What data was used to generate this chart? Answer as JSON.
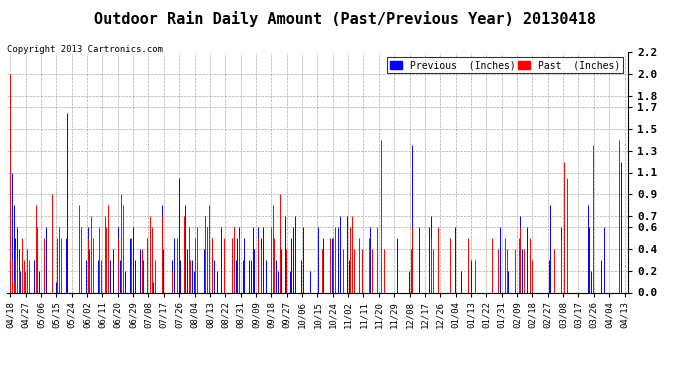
{
  "title": "Outdoor Rain Daily Amount (Past/Previous Year) 20130418",
  "copyright": "Copyright 2013 Cartronics.com",
  "legend": [
    {
      "label": "Previous  (Inches)",
      "color": "#0000ff"
    },
    {
      "label": "Past  (Inches)",
      "color": "#ff0000"
    }
  ],
  "yticks": [
    0.0,
    0.2,
    0.4,
    0.6,
    0.7,
    0.9,
    1.1,
    1.3,
    1.5,
    1.7,
    1.8,
    2.0,
    2.2
  ],
  "ymax": 2.2,
  "ymin": 0.0,
  "background_color": "#ffffff",
  "grid_color": "#aaaaaa",
  "title_fontsize": 11,
  "tick_label_fontsize": 6.5,
  "n_points": 366,
  "x_tick_labels": [
    "04/18",
    "04/27",
    "05/06",
    "05/15",
    "05/24",
    "06/02",
    "06/11",
    "06/20",
    "06/29",
    "07/08",
    "07/17",
    "07/26",
    "08/04",
    "08/13",
    "08/22",
    "08/31",
    "09/09",
    "09/18",
    "09/27",
    "10/06",
    "10/15",
    "10/24",
    "11/02",
    "11/11",
    "11/20",
    "11/29",
    "12/08",
    "12/17",
    "12/26",
    "01/04",
    "01/13",
    "01/22",
    "01/31",
    "02/09",
    "02/18",
    "02/27",
    "03/08",
    "03/17",
    "03/26",
    "04/04",
    "04/13"
  ],
  "blue_data": [
    0.3,
    1.1,
    0.8,
    0.5,
    0.6,
    0.4,
    0.2,
    0.0,
    0.0,
    0.1,
    0.0,
    0.0,
    0.0,
    0.0,
    0.3,
    0.0,
    0.4,
    0.2,
    0.0,
    0.0,
    0.3,
    0.6,
    0.0,
    0.0,
    0.0,
    0.0,
    0.0,
    0.1,
    0.4,
    0.5,
    0.0,
    0.0,
    0.0,
    0.5,
    1.65,
    0.0,
    0.0,
    0.0,
    0.0,
    0.0,
    0.0,
    0.6,
    0.3,
    0.0,
    0.0,
    0.3,
    0.6,
    0.4,
    0.0,
    0.0,
    0.0,
    0.0,
    0.3,
    0.0,
    0.0,
    0.0,
    0.0,
    0.0,
    0.0,
    0.3,
    0.0,
    0.4,
    0.0,
    0.0,
    0.6,
    0.3,
    0.4,
    0.0,
    0.2,
    0.0,
    0.0,
    0.5,
    0.2,
    0.6,
    0.3,
    0.0,
    0.0,
    0.4,
    0.2,
    0.3,
    0.0,
    0.5,
    0.0,
    0.0,
    0.0,
    0.1,
    0.0,
    0.0,
    0.0,
    0.0,
    0.8,
    0.4,
    0.0,
    0.0,
    0.0,
    0.0,
    0.3,
    0.5,
    0.0,
    0.0,
    1.05,
    0.3,
    0.0,
    0.6,
    0.8,
    0.4,
    0.6,
    0.0,
    0.3,
    0.2,
    0.4,
    0.2,
    0.0,
    0.0,
    0.0,
    0.4,
    0.7,
    0.6,
    0.0,
    0.0,
    0.5,
    0.3,
    0.0,
    0.2,
    0.0,
    0.6,
    0.0,
    0.0,
    0.0,
    0.0,
    0.0,
    0.0,
    0.4,
    0.6,
    0.3,
    0.5,
    0.6,
    0.0,
    0.3,
    0.5,
    0.0,
    0.0,
    0.3,
    0.3,
    0.6,
    0.4,
    0.0,
    0.6,
    0.0,
    0.5,
    0.6,
    0.0,
    0.3,
    0.0,
    0.0,
    0.0,
    0.0,
    0.0,
    0.3,
    0.2,
    0.6,
    0.4,
    0.0,
    0.7,
    0.3,
    0.0,
    0.2,
    0.5,
    0.6,
    0.7,
    0.0,
    0.0,
    0.0,
    0.3,
    0.6,
    0.0,
    0.0,
    0.0,
    0.2,
    0.0,
    0.0,
    0.0,
    0.0,
    0.6,
    0.0,
    0.0,
    0.5,
    0.0,
    0.0,
    0.0,
    0.0,
    0.5,
    0.0,
    0.0,
    0.0,
    0.6,
    0.7,
    0.0,
    0.0,
    0.0,
    0.7,
    0.3,
    0.0,
    0.0,
    0.0,
    0.0,
    0.0,
    0.0,
    0.0,
    0.0,
    0.0,
    0.0,
    0.0,
    0.0,
    0.6,
    0.0,
    0.0,
    0.0,
    0.0,
    0.0,
    0.0,
    0.0,
    0.0,
    0.0,
    0.0,
    0.0,
    0.0,
    0.0,
    0.0,
    0.0,
    0.5,
    0.0,
    0.0,
    0.0,
    0.0,
    0.0,
    0.0,
    0.2,
    0.4,
    1.35,
    0.0,
    0.0,
    0.0,
    0.6,
    0.0,
    0.0,
    0.0,
    0.0,
    0.0,
    0.6,
    0.7,
    0.0,
    0.0,
    0.0,
    0.0,
    0.0,
    0.0,
    0.0,
    0.0,
    0.0,
    0.0,
    0.0,
    0.0,
    0.0,
    0.6,
    0.0,
    0.0,
    0.0,
    0.2,
    0.0,
    0.0,
    0.0,
    0.0,
    0.0,
    0.3,
    0.0,
    0.0,
    0.0,
    0.0,
    0.0,
    0.0,
    0.0,
    0.0,
    0.0,
    0.0,
    0.0,
    0.0,
    0.0,
    0.0,
    0.0,
    0.0,
    0.6,
    0.0,
    0.0,
    0.0,
    0.0,
    0.2,
    0.0,
    0.0,
    0.0,
    0.1,
    0.0,
    0.0,
    0.7,
    0.4,
    0.0,
    0.0,
    0.6,
    0.0,
    0.0,
    0.0,
    0.0,
    0.0,
    0.0,
    0.0,
    0.0,
    0.0,
    0.0,
    0.0,
    0.0,
    0.3,
    0.8,
    0.0,
    0.0,
    0.0,
    0.0,
    0.0,
    0.6,
    0.0,
    0.0,
    0.0,
    0.3,
    0.0,
    0.0,
    0.0,
    0.0,
    0.0,
    0.0,
    0.0,
    0.0,
    0.0,
    0.0,
    0.0,
    0.8,
    0.6,
    0.2,
    0.0,
    0.0,
    0.0,
    0.0,
    0.0,
    0.3,
    0.0,
    0.6,
    0.0,
    0.0,
    0.0,
    0.0,
    0.0,
    0.0,
    0.0,
    0.0,
    0.6,
    1.2,
    0.0,
    0.0
  ],
  "red_data": [
    2.0,
    0.3,
    0.1,
    0.4,
    0.3,
    0.2,
    0.0,
    0.5,
    0.3,
    0.2,
    0.4,
    0.3,
    0.0,
    0.0,
    0.0,
    0.8,
    0.6,
    0.0,
    0.0,
    0.0,
    0.5,
    0.0,
    0.0,
    0.0,
    0.0,
    0.9,
    0.0,
    0.0,
    0.5,
    0.6,
    0.5,
    0.0,
    0.0,
    0.0,
    0.0,
    0.0,
    0.0,
    0.0,
    0.0,
    0.0,
    0.0,
    0.8,
    0.6,
    0.0,
    0.0,
    0.0,
    0.5,
    0.3,
    0.7,
    0.5,
    0.0,
    0.0,
    0.0,
    0.6,
    0.3,
    0.0,
    0.7,
    0.6,
    0.8,
    0.0,
    0.0,
    0.0,
    0.0,
    0.0,
    0.5,
    0.0,
    0.9,
    0.8,
    0.0,
    0.0,
    0.0,
    0.0,
    0.5,
    0.0,
    0.0,
    0.0,
    0.0,
    0.0,
    0.4,
    0.0,
    0.0,
    0.5,
    0.0,
    0.7,
    0.6,
    0.0,
    0.3,
    0.0,
    0.0,
    0.0,
    0.7,
    0.0,
    0.0,
    0.0,
    0.0,
    0.0,
    0.2,
    0.0,
    0.0,
    0.5,
    0.0,
    0.0,
    0.0,
    0.7,
    0.0,
    0.0,
    0.6,
    0.3,
    0.0,
    0.0,
    0.5,
    0.6,
    0.0,
    0.0,
    0.0,
    0.0,
    0.7,
    0.6,
    0.8,
    0.0,
    0.5,
    0.0,
    0.0,
    0.0,
    0.0,
    0.0,
    0.0,
    0.5,
    0.0,
    0.0,
    0.0,
    0.0,
    0.5,
    0.6,
    0.0,
    0.0,
    0.5,
    0.0,
    0.0,
    0.0,
    0.0,
    0.0,
    0.0,
    0.0,
    0.0,
    0.0,
    0.0,
    0.5,
    0.0,
    0.4,
    0.0,
    0.0,
    0.0,
    0.0,
    0.0,
    0.6,
    0.8,
    0.5,
    0.0,
    0.0,
    0.9,
    0.0,
    0.0,
    0.0,
    0.4,
    0.0,
    0.0,
    0.0,
    0.0,
    0.0,
    0.0,
    0.0,
    0.0,
    0.0,
    0.0,
    0.0,
    0.0,
    0.0,
    0.0,
    0.0,
    0.0,
    0.0,
    0.0,
    0.0,
    0.0,
    0.4,
    0.0,
    0.0,
    0.0,
    0.0,
    0.5,
    0.0,
    0.5,
    0.6,
    0.0,
    0.0,
    0.0,
    0.0,
    0.4,
    0.0,
    0.0,
    0.0,
    0.6,
    0.7,
    0.4,
    0.0,
    0.0,
    0.5,
    0.0,
    0.4,
    0.0,
    0.0,
    0.0,
    0.5,
    0.0,
    0.4,
    0.0,
    0.0,
    0.6,
    0.0,
    1.4,
    0.0,
    0.4,
    0.0,
    0.0,
    0.0,
    0.0,
    0.0,
    0.0,
    0.0,
    0.0,
    0.0,
    0.0,
    0.0,
    0.0,
    0.0,
    0.0,
    0.0,
    0.4,
    0.6,
    0.0,
    0.0,
    0.0,
    0.0,
    0.0,
    0.0,
    0.0,
    0.0,
    0.0,
    0.0,
    0.5,
    0.4,
    0.0,
    0.0,
    0.6,
    0.0,
    0.0,
    0.0,
    0.0,
    0.0,
    0.0,
    0.5,
    0.0,
    0.0,
    0.0,
    0.0,
    0.0,
    0.0,
    0.0,
    0.0,
    0.0,
    0.0,
    0.5,
    0.0,
    0.0,
    0.0,
    0.3,
    0.0,
    0.0,
    0.0,
    0.0,
    0.0,
    0.0,
    0.0,
    0.0,
    0.0,
    0.5,
    0.0,
    0.0,
    0.0,
    0.4,
    0.0,
    0.0,
    0.0,
    0.5,
    0.4,
    0.0,
    0.0,
    0.0,
    0.0,
    0.4,
    0.0,
    0.5,
    0.6,
    0.0,
    0.4,
    0.0,
    0.0,
    0.0,
    0.5,
    0.3,
    0.0,
    0.0,
    0.0,
    0.0,
    0.0,
    0.0,
    0.0,
    0.0,
    0.0,
    0.0,
    0.0,
    0.0,
    0.4,
    0.0,
    0.0,
    0.0,
    0.5,
    0.0,
    1.2,
    0.0,
    1.05,
    0.0,
    0.0,
    0.0,
    0.0,
    0.0,
    0.0,
    0.0,
    0.0,
    0.0,
    0.0,
    0.0,
    0.0,
    0.0,
    0.0,
    1.35,
    0.0,
    0.0,
    0.0,
    0.0,
    0.0,
    0.0,
    0.0,
    0.0,
    0.0,
    0.0,
    0.0,
    0.0,
    0.0,
    0.0,
    0.0,
    1.4,
    0.0,
    0.0,
    0.0
  ]
}
